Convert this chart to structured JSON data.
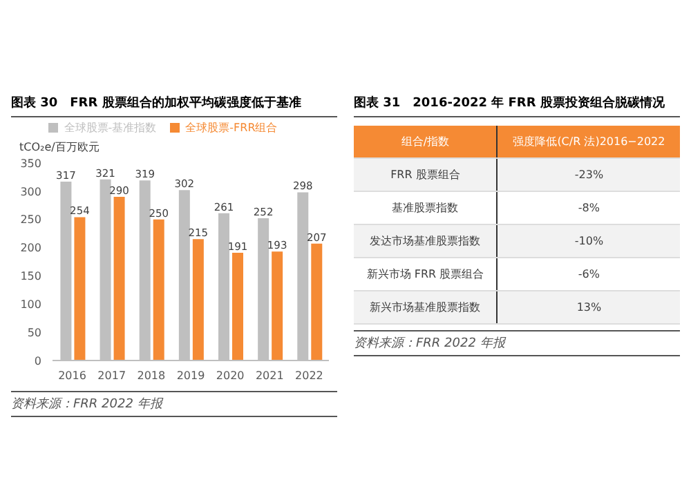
{
  "chart_data": [
    {
      "type": "bar",
      "title": "图表 30　FRR 股票组合的加权平均碳强度低于基准",
      "ylabel": "tCO₂e/百万欧元",
      "categories": [
        "2016",
        "2017",
        "2018",
        "2019",
        "2020",
        "2021",
        "2022"
      ],
      "series": [
        {
          "name": "全球股票-基准指数",
          "color": "#bfbfbf",
          "values": [
            317,
            321,
            319,
            302,
            261,
            252,
            298
          ]
        },
        {
          "name": "全球股票-FRR组合",
          "color": "#f58a34",
          "values": [
            254,
            290,
            250,
            215,
            191,
            193,
            207
          ]
        }
      ],
      "ylim": [
        0,
        350
      ],
      "yticks": [
        0,
        50,
        100,
        150,
        200,
        250,
        300,
        350
      ],
      "grid": false,
      "legend": "top",
      "data_labels": true,
      "annotations": [
        "资料来源：FRR 2022 年报"
      ]
    },
    {
      "type": "other",
      "title": "图表 31　2016-2022 年 FRR 股票投资组合脱碳情况",
      "categories": [
        "FRR 股票组合",
        "基准股票指数",
        "发达市场基准股票指数",
        "新兴市场 FRR 股票组合",
        "新兴市场基准股票指数"
      ],
      "value_labels": [
        "-23%",
        "-8%",
        "-10%",
        "-6%",
        "13%"
      ],
      "annotations": [
        "组合/指数",
        "强度降低(C/R 法)2016−2022",
        "资料来源：FRR 2022 年报"
      ]
    }
  ]
}
